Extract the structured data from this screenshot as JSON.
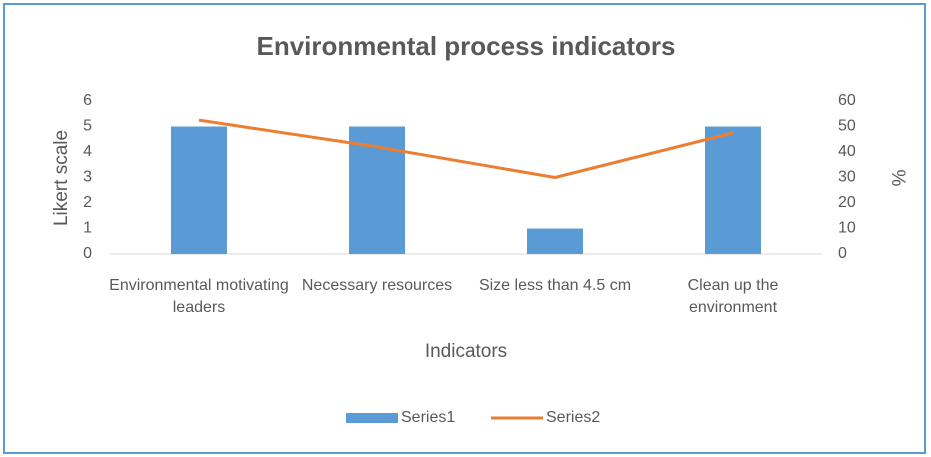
{
  "chart_data": {
    "type": "combo",
    "title": "Environmental process indicators",
    "categories": [
      "Environmental motivating leaders",
      "Necessary resources",
      "Size less than 4.5 cm",
      "Clean up the environment"
    ],
    "series": [
      {
        "name": "Series1",
        "type": "bar",
        "color": "#5b9bd5",
        "values": [
          5,
          5,
          1,
          5
        ]
      },
      {
        "name": "Series2",
        "type": "line",
        "axis": "y2",
        "color": "#ed7d31",
        "values": [
          52.5,
          42,
          30,
          47.5
        ]
      }
    ],
    "ylim": [
      0,
      6
    ],
    "yticks": [
      0,
      1,
      2,
      3,
      4,
      5,
      6
    ],
    "y2lim": [
      0,
      60
    ],
    "y2ticks": [
      0,
      10,
      20,
      30,
      40,
      50,
      60
    ],
    "ylabel": "Likert scale",
    "y2label": "%",
    "xlabel": "Indicators",
    "legend": "bottom",
    "grid": false
  }
}
